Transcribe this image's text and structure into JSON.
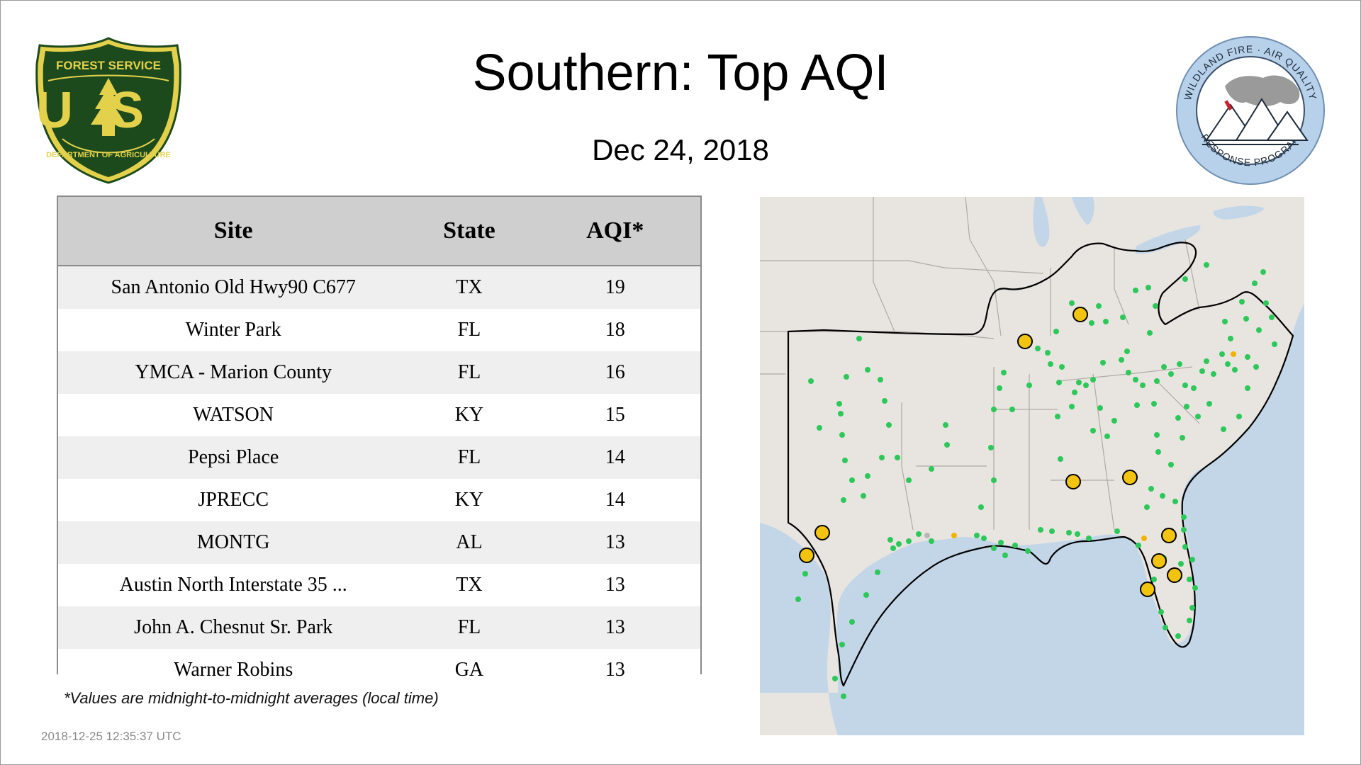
{
  "header": {
    "title": "Southern: Top AQI",
    "date": "Dec 24, 2018"
  },
  "logos": {
    "forest_service": {
      "top_text": "FOREST SERVICE",
      "letters": "US",
      "bottom_text": "DEPARTMENT OF AGRICULTURE",
      "colors": {
        "green": "#1c4a1c",
        "gold": "#e3d14c"
      }
    },
    "wildland_fire": {
      "top_text": "WILDLAND FIRE · AIR QUALITY",
      "bottom_text": "RESPONSE PROGRAM",
      "colors": {
        "ring": "#b8d1ea",
        "smoke": "#9a9a9a",
        "flag": "#c8202a"
      }
    }
  },
  "table": {
    "columns": [
      "Site",
      "State",
      "AQI*"
    ],
    "rows": [
      {
        "site": "San Antonio Old Hwy90 C677",
        "state": "TX",
        "aqi": "19"
      },
      {
        "site": "Winter Park",
        "state": "FL",
        "aqi": "18"
      },
      {
        "site": "YMCA - Marion County",
        "state": "FL",
        "aqi": "16"
      },
      {
        "site": "WATSON",
        "state": "KY",
        "aqi": "15"
      },
      {
        "site": "Pepsi Place",
        "state": "FL",
        "aqi": "14"
      },
      {
        "site": "JPRECC",
        "state": "KY",
        "aqi": "14"
      },
      {
        "site": "MONTG",
        "state": "AL",
        "aqi": "13"
      },
      {
        "site": "Austin North Interstate 35 ...",
        "state": "TX",
        "aqi": "13"
      },
      {
        "site": "John A. Chesnut Sr. Park",
        "state": "FL",
        "aqi": "13"
      },
      {
        "site": "Warner Robins",
        "state": "GA",
        "aqi": "13"
      }
    ]
  },
  "footnote": "*Values are midnight-to-midnight averages (local time)",
  "timestamp": "2018-12-25 12:35:37 UTC",
  "map": {
    "colors": {
      "land": "#e8e4e0",
      "water": "#c3d6e8",
      "boundary": "#000000",
      "border_light": "#b0aaa6",
      "monitor_good": "#2dc85a",
      "top_site": "#f2c40f",
      "moderate": "#f0b400"
    }
  }
}
